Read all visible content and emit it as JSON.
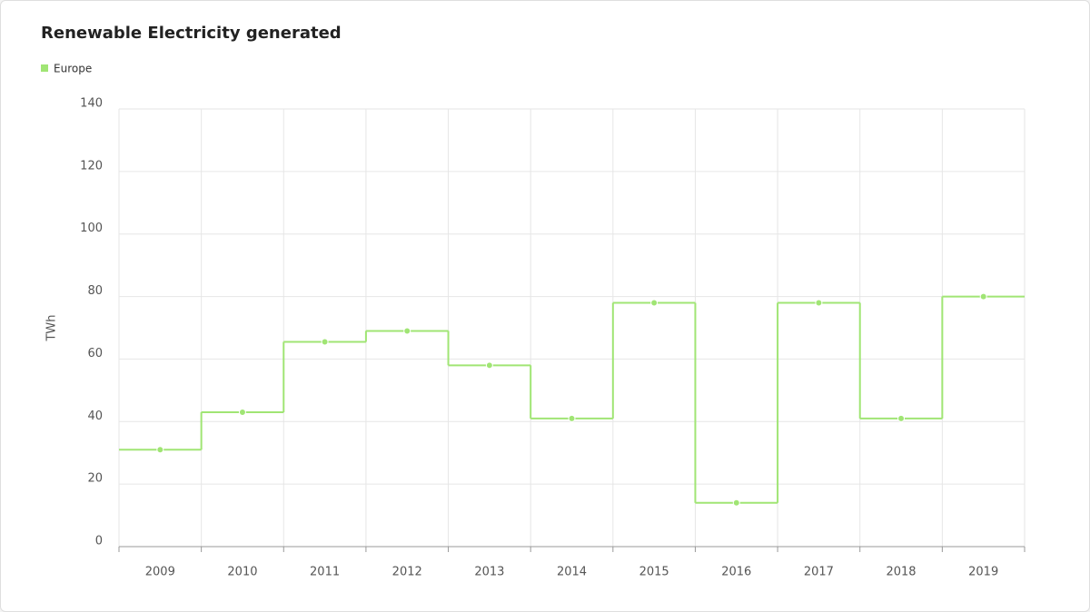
{
  "chart_data": {
    "type": "line",
    "step": true,
    "title": "Renewable Electricity generated",
    "y_label": "TWh",
    "categories": [
      "2009",
      "2010",
      "2011",
      "2012",
      "2013",
      "2014",
      "2015",
      "2016",
      "2017",
      "2018",
      "2019"
    ],
    "series": [
      {
        "name": "Europe",
        "color": "#a0e574",
        "values": [
          31,
          43,
          65.5,
          69,
          58,
          41,
          78,
          14,
          78,
          41,
          80
        ]
      }
    ],
    "ylim": [
      0,
      140
    ],
    "yticks": [
      0,
      20,
      40,
      60,
      80,
      100,
      120,
      140
    ],
    "grid": true,
    "legend": "top-left"
  }
}
